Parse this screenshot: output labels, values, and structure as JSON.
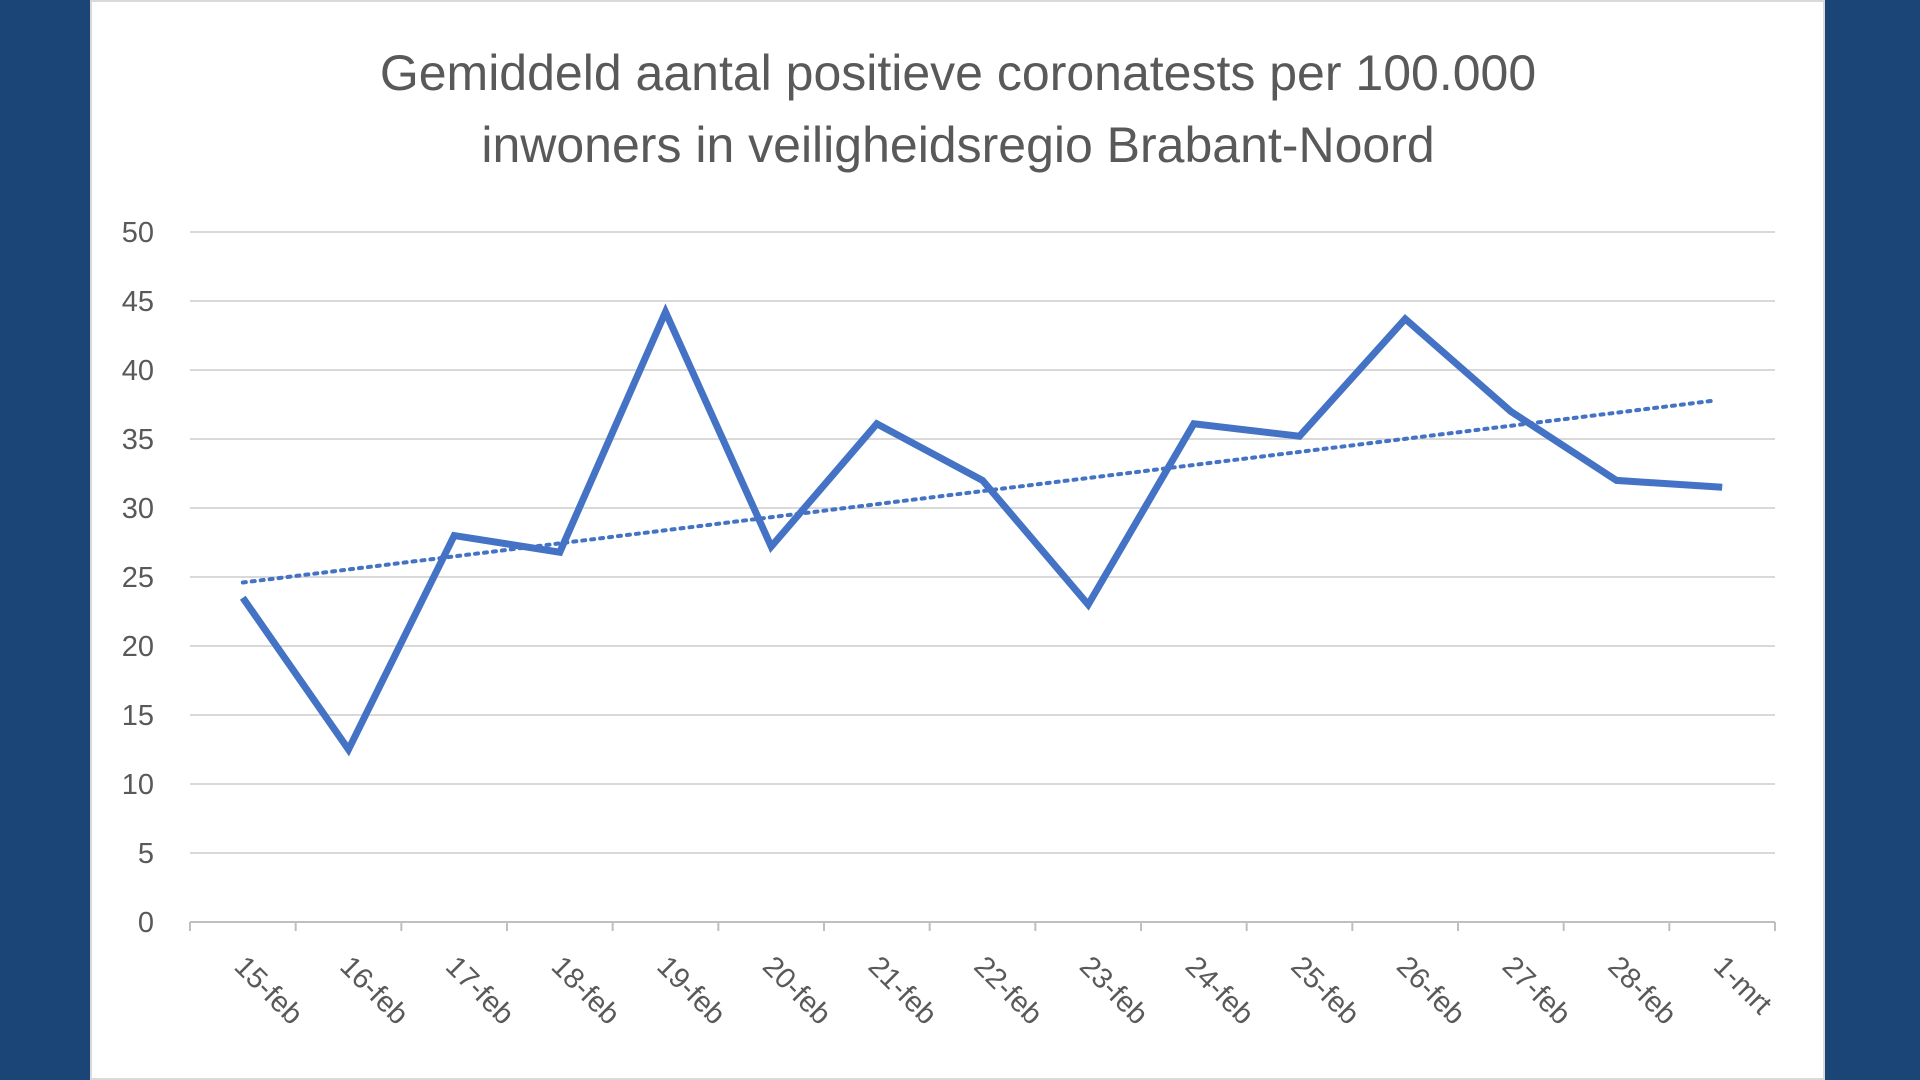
{
  "chart_data": {
    "type": "line",
    "title_lines": [
      "Gemiddeld aantal positieve coronatests per 100.000",
      "inwoners in veiligheidsregio Brabant-Noord"
    ],
    "categories": [
      "15-feb",
      "16-feb",
      "17-feb",
      "18-feb",
      "19-feb",
      "20-feb",
      "21-feb",
      "22-feb",
      "23-feb",
      "24-feb",
      "25-feb",
      "26-feb",
      "27-feb",
      "28-feb",
      "1-mrt"
    ],
    "series": [
      {
        "values": [
          23.5,
          12.5,
          28.0,
          26.8,
          44.2,
          27.2,
          36.1,
          32.0,
          23.0,
          36.1,
          35.2,
          43.7,
          37.0,
          32.0,
          31.5
        ],
        "color": "#4472c4"
      }
    ],
    "trendline": {
      "style": "dotted",
      "start": 24.6,
      "end": 37.8,
      "color": "#4472c4"
    },
    "ylim": [
      0,
      50
    ],
    "yticks": [
      0,
      5,
      10,
      15,
      20,
      25,
      30,
      35,
      40,
      45,
      50
    ],
    "grid": true,
    "legend": "none",
    "xlabel": "",
    "ylabel": ""
  }
}
